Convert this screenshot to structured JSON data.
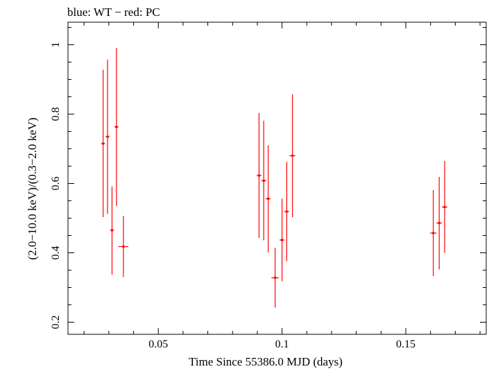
{
  "chart_data": {
    "type": "scatter",
    "title": "blue: WT − red: PC",
    "xlabel": "Time Since 55386.0 MJD (days)",
    "ylabel": "(2.0−10.0 keV)/(0.3−2.0 keV)",
    "xlim": [
      0.0135,
      0.1825
    ],
    "ylim": [
      0.165,
      1.065
    ],
    "xticks": [
      {
        "value": 0.05,
        "label": "0.05"
      },
      {
        "value": 0.1,
        "label": "0.1"
      },
      {
        "value": 0.15,
        "label": "0.15"
      }
    ],
    "yticks": [
      {
        "value": 0.2,
        "label": "0.2"
      },
      {
        "value": 0.4,
        "label": "0.4"
      },
      {
        "value": 0.6,
        "label": "0.6"
      },
      {
        "value": 0.8,
        "label": "0.8"
      },
      {
        "value": 1.0,
        "label": "1"
      }
    ],
    "grid": false,
    "series": [
      {
        "color": "#ff0000",
        "points": [
          {
            "x": 0.0277,
            "xerr": 0.0008,
            "y": 0.715,
            "ylo": 0.503,
            "yhi": 0.928
          },
          {
            "x": 0.0295,
            "xerr": 0.0008,
            "y": 0.735,
            "ylo": 0.512,
            "yhi": 0.957
          },
          {
            "x": 0.0313,
            "xerr": 0.0008,
            "y": 0.465,
            "ylo": 0.337,
            "yhi": 0.591
          },
          {
            "x": 0.0331,
            "xerr": 0.0008,
            "y": 0.763,
            "ylo": 0.535,
            "yhi": 0.991
          },
          {
            "x": 0.0359,
            "xerr": 0.002,
            "y": 0.418,
            "ylo": 0.33,
            "yhi": 0.506
          },
          {
            "x": 0.0907,
            "xerr": 0.001,
            "y": 0.623,
            "ylo": 0.443,
            "yhi": 0.803
          },
          {
            "x": 0.0926,
            "xerr": 0.001,
            "y": 0.608,
            "ylo": 0.436,
            "yhi": 0.781
          },
          {
            "x": 0.0944,
            "xerr": 0.001,
            "y": 0.556,
            "ylo": 0.401,
            "yhi": 0.71
          },
          {
            "x": 0.0972,
            "xerr": 0.0015,
            "y": 0.328,
            "ylo": 0.242,
            "yhi": 0.414
          },
          {
            "x": 0.1,
            "xerr": 0.001,
            "y": 0.437,
            "ylo": 0.318,
            "yhi": 0.556
          },
          {
            "x": 0.1019,
            "xerr": 0.001,
            "y": 0.519,
            "ylo": 0.376,
            "yhi": 0.662
          },
          {
            "x": 0.1042,
            "xerr": 0.0012,
            "y": 0.68,
            "ylo": 0.503,
            "yhi": 0.857
          },
          {
            "x": 0.1611,
            "xerr": 0.0013,
            "y": 0.457,
            "ylo": 0.333,
            "yhi": 0.581
          },
          {
            "x": 0.1635,
            "xerr": 0.0011,
            "y": 0.486,
            "ylo": 0.352,
            "yhi": 0.619
          },
          {
            "x": 0.1657,
            "xerr": 0.0011,
            "y": 0.532,
            "ylo": 0.4,
            "yhi": 0.665
          }
        ]
      }
    ]
  }
}
